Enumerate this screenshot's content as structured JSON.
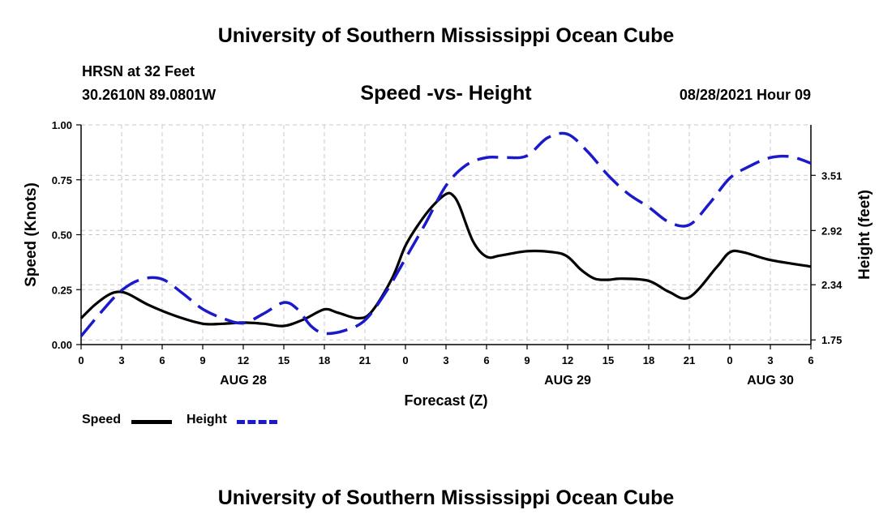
{
  "header": {
    "title": "University of Southern Mississippi Ocean Cube",
    "station": "HRSN at 32 Feet",
    "coordinates": "30.2610N  89.0801W",
    "chart_title": "Speed -vs- Height",
    "date_hour": "08/28/2021 Hour 09"
  },
  "footer": {
    "title": "University of Southern Mississippi Ocean Cube"
  },
  "legend": {
    "speed_label": "Speed",
    "height_label": "Height"
  },
  "colors": {
    "speed": "#000000",
    "height": "#1a1acc",
    "grid": "#c8c8c8"
  },
  "chart_data": {
    "type": "line",
    "title": "Speed -vs- Height",
    "xlabel": "Forecast (Z)",
    "ylabel": "Speed (Knots)",
    "y2label": "Height (feet)",
    "xlim": [
      0,
      54
    ],
    "ylim": [
      0,
      1
    ],
    "y2lim": [
      1.7,
      4.05
    ],
    "x_ticks": [
      0,
      3,
      6,
      9,
      12,
      15,
      18,
      21,
      24,
      27,
      30,
      33,
      36,
      39,
      42,
      45,
      48,
      51,
      54
    ],
    "x_tick_labels": [
      "0",
      "3",
      "6",
      "9",
      "12",
      "15",
      "18",
      "21",
      "0",
      "3",
      "6",
      "9",
      "12",
      "15",
      "18",
      "21",
      "0",
      "3",
      "6"
    ],
    "day_labels": [
      {
        "x": 12,
        "label": "AUG 28"
      },
      {
        "x": 36,
        "label": "AUG 29"
      },
      {
        "x": 51,
        "label": "AUG 30"
      }
    ],
    "y_ticks": [
      0,
      0.25,
      0.5,
      0.75,
      1.0
    ],
    "y_tick_labels": [
      "0.00",
      "0.25",
      "0.50",
      "0.75",
      "1.00"
    ],
    "y2_ticks": [
      1.75,
      2.34,
      2.92,
      3.51
    ],
    "y2_tick_labels": [
      "1.75",
      "2.34",
      "2.92",
      "3.51"
    ],
    "grid": true,
    "series": [
      {
        "name": "Speed",
        "axis": "left",
        "style": "solid",
        "x": [
          0,
          1,
          2,
          2.7,
          3.5,
          5,
          7,
          9,
          10.5,
          12,
          13.5,
          15,
          16.5,
          18,
          19,
          20.5,
          21.5,
          23,
          24,
          25,
          26,
          27,
          27.5,
          28,
          29,
          30,
          31,
          33,
          35,
          36,
          37,
          38,
          39,
          40,
          42,
          43.5,
          45,
          47,
          48,
          49,
          51,
          54
        ],
        "y": [
          0.12,
          0.18,
          0.225,
          0.24,
          0.23,
          0.18,
          0.13,
          0.095,
          0.095,
          0.1,
          0.095,
          0.085,
          0.115,
          0.16,
          0.145,
          0.12,
          0.15,
          0.3,
          0.45,
          0.55,
          0.63,
          0.685,
          0.68,
          0.63,
          0.47,
          0.4,
          0.405,
          0.425,
          0.42,
          0.4,
          0.34,
          0.3,
          0.295,
          0.3,
          0.29,
          0.24,
          0.215,
          0.35,
          0.42,
          0.42,
          0.385,
          0.355
        ]
      },
      {
        "name": "Height",
        "axis": "right",
        "style": "dashed",
        "x": [
          0,
          1.5,
          3,
          4.5,
          6,
          7.5,
          9,
          10.5,
          12,
          13.5,
          15,
          16,
          17,
          18,
          19.5,
          21,
          22.5,
          24,
          25.5,
          27,
          28.5,
          30,
          31.5,
          33,
          34.5,
          36,
          37.5,
          39,
          40.5,
          42,
          43.5,
          45,
          46.5,
          48,
          49.5,
          51,
          52.5,
          54
        ],
        "y": [
          1.79,
          2.05,
          2.28,
          2.4,
          2.4,
          2.25,
          2.08,
          1.98,
          1.93,
          2.03,
          2.15,
          2.08,
          1.9,
          1.82,
          1.85,
          1.96,
          2.25,
          2.62,
          3.0,
          3.4,
          3.62,
          3.7,
          3.7,
          3.72,
          3.91,
          3.95,
          3.76,
          3.51,
          3.31,
          3.17,
          3.01,
          2.98,
          3.21,
          3.48,
          3.61,
          3.7,
          3.71,
          3.64
        ]
      }
    ]
  }
}
